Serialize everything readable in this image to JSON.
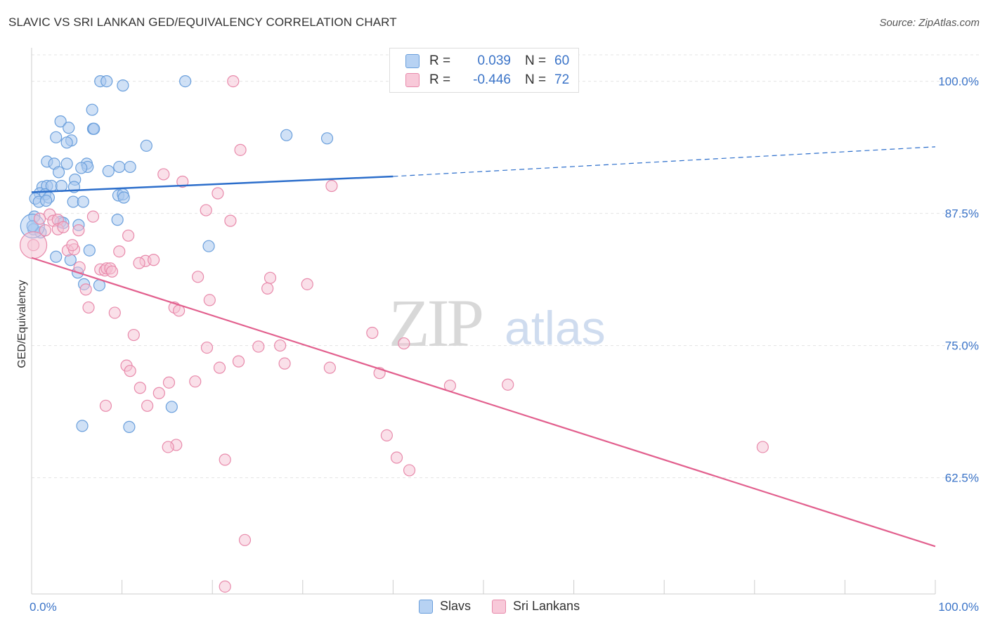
{
  "title": "SLAVIC VS SRI LANKAN GED/EQUIVALENCY CORRELATION CHART",
  "source": "Source: ZipAtlas.com",
  "watermark": {
    "zip": "ZIP",
    "atlas": "atlas"
  },
  "colors": {
    "slavs": "#6a9fdc",
    "slavs_fill": "#a9c8ef",
    "slavs_line": "#2c6ecb",
    "srilankans": "#e88aab",
    "srilankans_fill": "#f5c2d3",
    "srilankans_line": "#e2608e",
    "axis_text": "#3b74c8",
    "grid": "#e4e4e4"
  },
  "legend_top": [
    {
      "r_label": "R =",
      "r_value": "0.039",
      "n_label": "N =",
      "n_value": "60"
    },
    {
      "r_label": "R =",
      "r_value": "-0.446",
      "n_label": "N =",
      "n_value": "72"
    }
  ],
  "chart_data": {
    "type": "scatter",
    "title": "SLAVIC VS SRI LANKAN GED/EQUIVALENCY CORRELATION CHART",
    "xlabel": "",
    "ylabel": "GED/Equivalency",
    "xlim": [
      0,
      100
    ],
    "ylim": [
      51.5,
      102.5
    ],
    "x_tick_labels": [
      "0.0%",
      "100.0%"
    ],
    "y_ticks": [
      62.5,
      75.0,
      87.5,
      100.0
    ],
    "y_tick_labels": [
      "62.5%",
      "75.0%",
      "87.5%",
      "100.0%"
    ],
    "grid": true,
    "legend_position": "bottom-center",
    "series": [
      {
        "name": "Slavs",
        "r": 0.039,
        "n": 60,
        "trend": {
          "x0": 0,
          "y0": 89.5,
          "x1": 40,
          "y1": 91.0,
          "dashed_to_x": 100,
          "dashed_to_y": 93.8
        },
        "points": [
          [
            7.6,
            100
          ],
          [
            8.3,
            100
          ],
          [
            17,
            100
          ],
          [
            10.1,
            99.6
          ],
          [
            6.7,
            97.3
          ],
          [
            3.2,
            96.2
          ],
          [
            4.1,
            95.6
          ],
          [
            6.8,
            95.5
          ],
          [
            6.9,
            95.5
          ],
          [
            2.7,
            94.7
          ],
          [
            4.4,
            94.4
          ],
          [
            3.9,
            94.2
          ],
          [
            28.2,
            94.9
          ],
          [
            32.7,
            94.6
          ],
          [
            12.7,
            93.9
          ],
          [
            1.7,
            92.4
          ],
          [
            2.5,
            92.2
          ],
          [
            3.9,
            92.2
          ],
          [
            6.1,
            92.2
          ],
          [
            6.2,
            91.9
          ],
          [
            5.5,
            91.8
          ],
          [
            8.5,
            91.5
          ],
          [
            9.7,
            91.9
          ],
          [
            10.9,
            91.9
          ],
          [
            3,
            91.4
          ],
          [
            4.8,
            90.7
          ],
          [
            1.2,
            90.0
          ],
          [
            1.7,
            90.1
          ],
          [
            2.2,
            90.1
          ],
          [
            3.3,
            90.1
          ],
          [
            4.7,
            90.0
          ],
          [
            0.9,
            89.4
          ],
          [
            1.5,
            89.3
          ],
          [
            1.9,
            89.0
          ],
          [
            9.6,
            89.2
          ],
          [
            10.1,
            89.3
          ],
          [
            10.2,
            89.0
          ],
          [
            0.4,
            88.9
          ],
          [
            0.8,
            88.6
          ],
          [
            1.6,
            88.7
          ],
          [
            4.6,
            88.6
          ],
          [
            5.7,
            88.6
          ],
          [
            0.3,
            87.2
          ],
          [
            3.2,
            86.7
          ],
          [
            3.5,
            86.6
          ],
          [
            9.5,
            86.9
          ],
          [
            5.2,
            86.4
          ],
          [
            0.2,
            86.0
          ],
          [
            1.0,
            85.7
          ],
          [
            6.4,
            84.0
          ],
          [
            19.6,
            84.4
          ],
          [
            2.7,
            83.4
          ],
          [
            4.3,
            83.1
          ],
          [
            5.1,
            81.9
          ],
          [
            5.8,
            80.8
          ],
          [
            7.5,
            80.7
          ],
          [
            15.5,
            69.2
          ],
          [
            5.6,
            67.4
          ],
          [
            10.8,
            67.3
          ],
          [
            0.1,
            86.3
          ]
        ]
      },
      {
        "name": "Sri Lankans",
        "r": -0.446,
        "n": 72,
        "trend": {
          "x0": 0,
          "y0": 83.3,
          "x1": 100,
          "y1": 56.0
        },
        "points": [
          [
            22.3,
            100
          ],
          [
            23.1,
            93.5
          ],
          [
            14.6,
            91.2
          ],
          [
            16.7,
            90.5
          ],
          [
            20.6,
            89.4
          ],
          [
            33.2,
            90.1
          ],
          [
            19.3,
            87.8
          ],
          [
            2.0,
            87.4
          ],
          [
            0.9,
            87.0
          ],
          [
            2.4,
            86.8
          ],
          [
            2.9,
            86.9
          ],
          [
            6.8,
            87.2
          ],
          [
            22.0,
            86.8
          ],
          [
            2.9,
            86.0
          ],
          [
            3.5,
            86.2
          ],
          [
            5.2,
            85.9
          ],
          [
            1.5,
            85.9
          ],
          [
            10.7,
            85.4
          ],
          [
            0.2,
            84.5
          ],
          [
            4.0,
            84.0
          ],
          [
            4.7,
            84.1
          ],
          [
            4.5,
            84.5
          ],
          [
            9.7,
            83.9
          ],
          [
            12.6,
            83.0
          ],
          [
            13.5,
            83.1
          ],
          [
            11.9,
            82.8
          ],
          [
            5.3,
            82.4
          ],
          [
            7.6,
            82.2
          ],
          [
            8.1,
            82.1
          ],
          [
            8.3,
            82.3
          ],
          [
            8.7,
            82.3
          ],
          [
            8.9,
            82.0
          ],
          [
            18.4,
            81.5
          ],
          [
            26.4,
            81.4
          ],
          [
            30.5,
            80.8
          ],
          [
            26.1,
            80.4
          ],
          [
            6.0,
            80.3
          ],
          [
            19.7,
            79.3
          ],
          [
            6.3,
            78.6
          ],
          [
            15.8,
            78.6
          ],
          [
            16.3,
            78.3
          ],
          [
            9.2,
            78.1
          ],
          [
            37.7,
            76.2
          ],
          [
            11.3,
            76.0
          ],
          [
            41.2,
            75.2
          ],
          [
            19.4,
            74.8
          ],
          [
            25.1,
            74.9
          ],
          [
            27.5,
            75.0
          ],
          [
            22.9,
            73.5
          ],
          [
            28.0,
            73.3
          ],
          [
            10.5,
            73.1
          ],
          [
            20.8,
            72.9
          ],
          [
            33.0,
            72.9
          ],
          [
            10.9,
            72.6
          ],
          [
            38.5,
            72.4
          ],
          [
            15.2,
            71.5
          ],
          [
            18.1,
            71.6
          ],
          [
            46.3,
            71.2
          ],
          [
            52.7,
            71.3
          ],
          [
            12.0,
            71.0
          ],
          [
            14.1,
            70.5
          ],
          [
            8.2,
            69.3
          ],
          [
            12.8,
            69.3
          ],
          [
            39.3,
            66.5
          ],
          [
            16.0,
            65.6
          ],
          [
            15.1,
            65.4
          ],
          [
            80.9,
            65.4
          ],
          [
            21.4,
            64.2
          ],
          [
            40.4,
            64.4
          ],
          [
            41.8,
            63.2
          ],
          [
            23.6,
            56.6
          ],
          [
            21.4,
            52.2
          ]
        ]
      }
    ]
  },
  "legend_bottom": [
    {
      "label": "Slavs"
    },
    {
      "label": "Sri Lankans"
    }
  ]
}
